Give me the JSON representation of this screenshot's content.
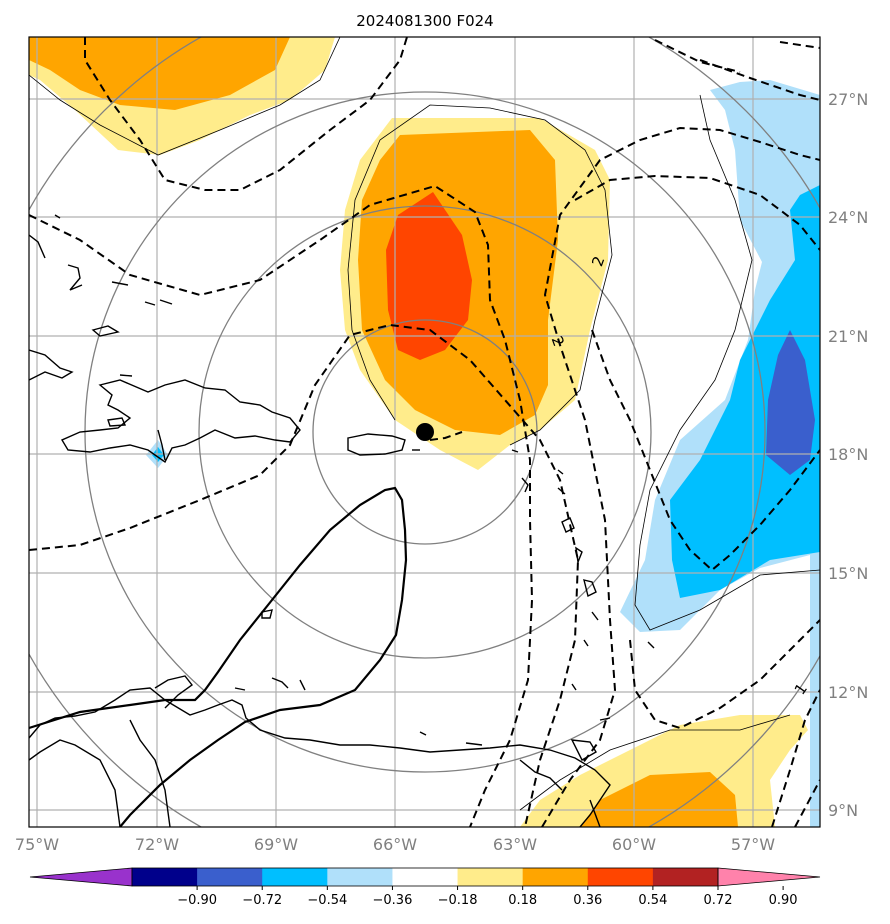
{
  "title": "2024081300 F024",
  "lon_labels": [
    "75°W",
    "72°W",
    "69°W",
    "66°W",
    "63°W",
    "60°W",
    "57°W"
  ],
  "lat_labels": [
    "27°N",
    "24°N",
    "21°N",
    "18°N",
    "15°N",
    "12°N",
    "9°N"
  ],
  "contour_labels": [
    "2",
    "2",
    "1"
  ],
  "colorbar": {
    "tick_labels": [
      "−0.90",
      "−0.72",
      "−0.54",
      "−0.36",
      "−0.18",
      "0.18",
      "0.36",
      "0.54",
      "0.72",
      "0.90"
    ],
    "colors": [
      "#9932cc",
      "#00008b",
      "#3a5fcd",
      "#00bfff",
      "#b0e0fa",
      "#ffffff",
      "#ffec8b",
      "#ffa500",
      "#ff4500",
      "#b22222",
      "#ff82ab"
    ]
  },
  "field_colors": {
    "light_yellow": "#ffec8b",
    "orange": "#ffa500",
    "red_orange": "#ff4500",
    "light_blue": "#b0e0fa",
    "deep_sky_blue": "#00bfff",
    "royal_blue": "#3a5fcd"
  },
  "storm_center": {
    "lon": -65.3,
    "lat": 18.6
  }
}
